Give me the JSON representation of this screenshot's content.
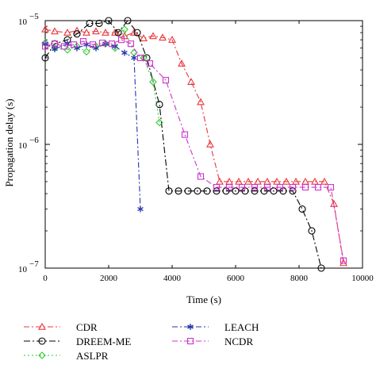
{
  "chart_data": {
    "type": "line",
    "xlabel": "Time (s)",
    "ylabel": "Propagation delay (s)",
    "xlim": [
      0,
      10000
    ],
    "ylim": [
      1e-07,
      1e-05
    ],
    "yscale": "log",
    "grid": false,
    "legend_position": "bottom",
    "x_ticks": [
      {
        "value": 0,
        "label": "0"
      },
      {
        "value": 2000,
        "label": "2000"
      },
      {
        "value": 4000,
        "label": "4000"
      },
      {
        "value": 6000,
        "label": "6000"
      },
      {
        "value": 8000,
        "label": "8000"
      },
      {
        "value": 10000,
        "label": "10000"
      }
    ],
    "y_ticks": [
      {
        "value": 1e-05,
        "base": "10",
        "exp": "−5"
      },
      {
        "value": 1e-06,
        "base": "10",
        "exp": "−6"
      },
      {
        "value": 1e-07,
        "base": "10",
        "exp": "−7"
      }
    ],
    "series": [
      {
        "name": "CDR",
        "color": "#e8383d",
        "marker": "triangle",
        "dash": "7,3,2,3",
        "x": [
          0,
          300,
          700,
          1000,
          1300,
          1600,
          1900,
          2200,
          2500,
          2800,
          3100,
          3400,
          3700,
          4000,
          4300,
          4600,
          4900,
          5200,
          5500,
          5800,
          6100,
          6400,
          6700,
          7000,
          7300,
          7600,
          7900,
          8200,
          8500,
          8800,
          9100,
          9400
        ],
        "y": [
          8.5e-06,
          8.2e-06,
          8e-06,
          8.3e-06,
          8e-06,
          8.2e-06,
          8e-06,
          8e-06,
          7.5e-06,
          8e-06,
          7.2e-06,
          7.5e-06,
          7.3e-06,
          7e-06,
          4.5e-06,
          3.2e-06,
          2.2e-06,
          1e-06,
          5e-07,
          5e-07,
          5e-07,
          5e-07,
          5e-07,
          5e-07,
          5e-07,
          5e-07,
          5e-07,
          5e-07,
          5e-07,
          5e-07,
          3.3e-07,
          1.1e-07
        ]
      },
      {
        "name": "DREEM-ME",
        "color": "#000000",
        "marker": "circle",
        "dash": "8,3,2,3",
        "x": [
          0,
          300,
          700,
          1000,
          1400,
          1700,
          2000,
          2300,
          2600,
          2900,
          3200,
          3600,
          3900,
          4200,
          4500,
          4800,
          5100,
          5400,
          5700,
          6000,
          6300,
          6600,
          6900,
          7200,
          7500,
          7800,
          8100,
          8400,
          8700
        ],
        "y": [
          5e-06,
          6.5e-06,
          7e-06,
          7.8e-06,
          9.5e-06,
          9.5e-06,
          1e-05,
          8e-06,
          1e-05,
          8e-06,
          5e-06,
          2.1e-06,
          4.2e-07,
          4.2e-07,
          4.2e-07,
          4.2e-07,
          4.2e-07,
          4.2e-07,
          4.2e-07,
          4.2e-07,
          4.2e-07,
          4.2e-07,
          4.2e-07,
          4.2e-07,
          4.2e-07,
          4.2e-07,
          3e-07,
          2e-07,
          1e-07
        ]
      },
      {
        "name": "ASLPR",
        "color": "#33c833",
        "marker": "diamond",
        "dash": "2,3",
        "x": [
          0,
          300,
          700,
          1000,
          1300,
          1600,
          1900,
          2200,
          2500,
          2800,
          3100,
          3400,
          3600
        ],
        "y": [
          6.6e-06,
          6e-06,
          5.8e-06,
          6.2e-06,
          5.6e-06,
          6.2e-06,
          6.5e-06,
          6e-06,
          8.5e-06,
          5.5e-06,
          5e-06,
          3.2e-06,
          1.5e-06
        ]
      },
      {
        "name": "LEACH",
        "color": "#2233aa",
        "marker": "star",
        "dash": "7,3,2,3",
        "x": [
          0,
          300,
          700,
          1000,
          1300,
          1600,
          1900,
          2200,
          2500,
          2800,
          3000
        ],
        "y": [
          6.5e-06,
          5.9e-06,
          6.5e-06,
          6e-06,
          6.4e-06,
          6e-06,
          6.5e-06,
          6.2e-06,
          5.5e-06,
          5e-06,
          3e-07
        ]
      },
      {
        "name": "NCDR",
        "color": "#cc33cc",
        "marker": "square",
        "dash": "7,3,2,3",
        "x": [
          0,
          300,
          600,
          900,
          1200,
          1500,
          1800,
          2100,
          2400,
          2700,
          3000,
          3300,
          3800,
          4400,
          4900,
          5400,
          5800,
          6200,
          6600,
          7000,
          7400,
          7800,
          8200,
          8600,
          9000,
          9400
        ],
        "y": [
          6.2e-06,
          6.5e-06,
          6.2e-06,
          6.4e-06,
          6.8e-06,
          6.4e-06,
          6.6e-06,
          6.5e-06,
          7e-06,
          6.5e-06,
          5e-06,
          4.5e-06,
          3.3e-06,
          1.2e-06,
          5.5e-07,
          4.5e-07,
          4.5e-07,
          4.5e-07,
          4.5e-07,
          4.5e-07,
          4.5e-07,
          4.5e-07,
          4.5e-07,
          4.5e-07,
          4.5e-07,
          1.15e-07
        ]
      }
    ]
  }
}
